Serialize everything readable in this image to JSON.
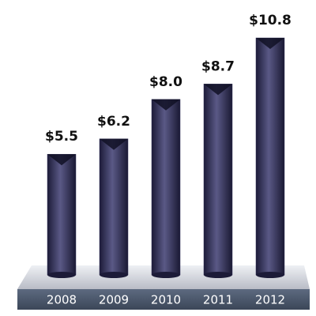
{
  "chart_data": {
    "type": "bar",
    "categories": [
      "2008",
      "2009",
      "2010",
      "2011",
      "2012"
    ],
    "values": [
      5.5,
      6.2,
      8.0,
      8.7,
      10.8
    ],
    "value_labels": [
      "$5.5",
      "$6.2",
      "$8.0",
      "$8.7",
      "$10.8"
    ],
    "color": "#34335c"
  }
}
